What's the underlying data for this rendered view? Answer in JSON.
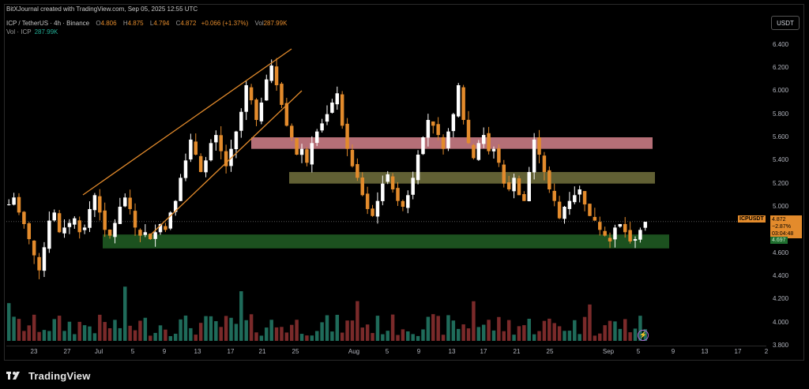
{
  "header": {
    "attribution": "BitXJournal created with TradingView.com, Sep 05, 2025 12:55 UTC"
  },
  "legend": {
    "symbol": "ICP / TetherUS · 4h · Binance",
    "open_label": "O",
    "open": "4.806",
    "high_label": "H",
    "high": "4.875",
    "low_label": "L",
    "low": "4.794",
    "close_label": "C",
    "close": "4.872",
    "change": "+0.066 (+1.37%)",
    "vol_label": "Vol",
    "vol": "287.99K",
    "vol_series_label": "Vol · ICP",
    "vol_series_value": "287.99K"
  },
  "price_axis": {
    "currency_button": "USDT",
    "ticks": [
      "6.400",
      "6.200",
      "6.000",
      "5.800",
      "5.600",
      "5.400",
      "5.200",
      "5.000",
      "4.800",
      "4.600",
      "4.400",
      "4.200",
      "4.000",
      "3.800"
    ]
  },
  "time_axis": {
    "ticks": [
      "23",
      "27",
      "Jul",
      "5",
      "9",
      "13",
      "17",
      "21",
      "25",
      "Aug",
      "5",
      "9",
      "13",
      "17",
      "21",
      "25",
      "Sep",
      "5",
      "9",
      "13",
      "17",
      "2"
    ]
  },
  "price_label": {
    "symbol": "ICPUSDT",
    "price": "4.872",
    "change": "−2.87%",
    "countdown": "03:04:48",
    "support": "4.697"
  },
  "footer": {
    "brand": "TradingView"
  },
  "colors": {
    "background": "#000000",
    "candle": "#e38b2c",
    "candle_alt": "#ffffff",
    "channel": "#e38b2c",
    "zone_red": "#c97b84",
    "zone_olive": "#6b6a3a",
    "zone_green": "#1f5a22"
  },
  "chart_data": {
    "type": "candlestick",
    "title": "ICP / TetherUS · 4h · Binance",
    "ylim": [
      3.8,
      6.5
    ],
    "close_path": [
      5.02,
      5.08,
      4.95,
      4.85,
      4.72,
      4.58,
      4.45,
      4.65,
      4.88,
      4.95,
      4.78,
      4.82,
      4.86,
      4.9,
      4.78,
      4.82,
      4.98,
      5.1,
      4.95,
      4.8,
      4.75,
      4.86,
      5.0,
      5.08,
      4.98,
      4.82,
      4.75,
      4.78,
      4.72,
      4.78,
      4.85,
      4.8,
      4.95,
      5.05,
      5.25,
      5.4,
      5.58,
      5.45,
      5.3,
      5.4,
      5.55,
      5.62,
      5.48,
      5.35,
      5.5,
      5.65,
      5.82,
      6.05,
      5.92,
      5.75,
      5.9,
      6.1,
      6.22,
      6.05,
      5.88,
      5.7,
      5.6,
      5.45,
      5.5,
      5.38,
      5.55,
      5.65,
      5.72,
      5.8,
      5.9,
      5.98,
      5.7,
      5.5,
      5.35,
      5.25,
      5.1,
      4.98,
      4.92,
      5.05,
      5.2,
      5.28,
      5.15,
      5.05,
      5.0,
      5.1,
      5.25,
      5.45,
      5.6,
      5.75,
      5.7,
      5.62,
      5.5,
      5.65,
      5.8,
      6.05,
      5.75,
      5.55,
      5.42,
      5.55,
      5.62,
      5.48,
      5.5,
      5.38,
      5.2,
      5.15,
      5.25,
      5.1,
      5.05,
      5.3,
      5.58,
      5.45,
      5.3,
      5.15,
      5.05,
      4.9,
      5.0,
      5.05,
      5.1,
      5.15,
      5.02,
      4.92,
      4.88,
      4.8,
      4.75,
      4.7,
      4.82,
      4.85,
      4.78,
      4.7,
      4.72,
      4.8,
      4.87
    ],
    "zones": [
      {
        "name": "resistance-upper",
        "low": 5.5,
        "high": 5.6,
        "color": "#c97b84"
      },
      {
        "name": "resistance-lower",
        "low": 5.2,
        "high": 5.3,
        "color": "#6b6a3a"
      },
      {
        "name": "support",
        "low": 4.64,
        "high": 4.76,
        "color": "#1f5a22"
      }
    ],
    "current_price": 4.872
  }
}
